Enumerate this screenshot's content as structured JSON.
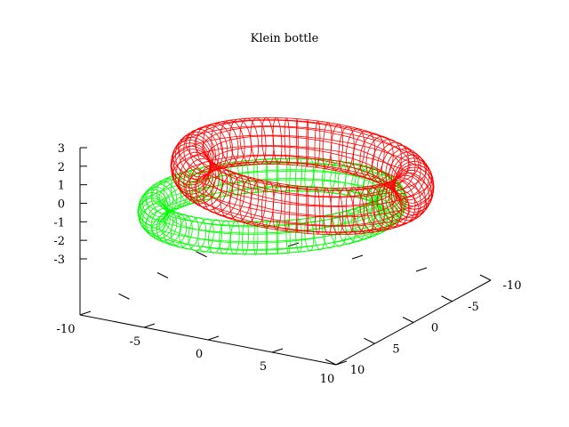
{
  "chart_data": {
    "type": "surface",
    "title": "Klein bottle",
    "xlabel": "",
    "ylabel": "",
    "zlabel": "",
    "x_range": [
      -10,
      10
    ],
    "y_range": [
      -10,
      10
    ],
    "z_range": [
      -3,
      3
    ],
    "x_ticks": [
      "-10",
      "-5",
      "0",
      "5",
      "10"
    ],
    "y_ticks": [
      "10",
      "5",
      "0",
      "-5",
      "-10"
    ],
    "z_ticks": [
      "3",
      "2",
      "1",
      "0",
      "-1",
      "-2",
      "-3"
    ],
    "grid": false,
    "legend": "none",
    "series": [
      {
        "color": "#ff0000",
        "style": "wireframe"
      },
      {
        "color": "#00ff00",
        "style": "wireframe"
      }
    ]
  }
}
